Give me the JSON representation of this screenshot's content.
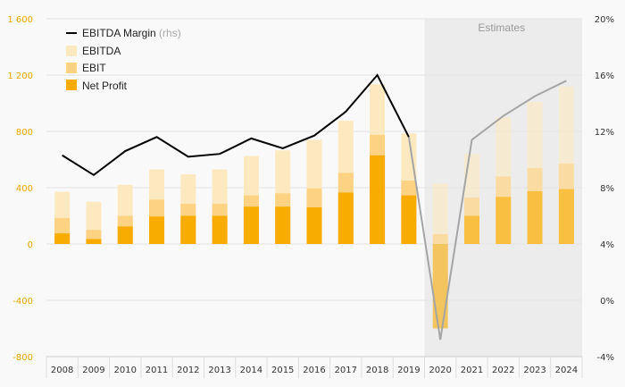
{
  "chart_data": {
    "type": "bar",
    "subtype": "stacked-overlay bar with line on secondary axis",
    "categories": [
      "2008",
      "2009",
      "2010",
      "2011",
      "2012",
      "2013",
      "2014",
      "2015",
      "2016",
      "2017",
      "2018",
      "2019",
      "2020",
      "2021",
      "2022",
      "2023",
      "2024"
    ],
    "series": [
      {
        "name": "EBITDA",
        "values": [
          370,
          300,
          420,
          530,
          495,
          530,
          625,
          665,
          740,
          875,
          1135,
          785,
          430,
          640,
          900,
          1010,
          1120
        ]
      },
      {
        "name": "EBIT",
        "values": [
          185,
          100,
          200,
          315,
          285,
          285,
          345,
          360,
          395,
          505,
          775,
          450,
          70,
          330,
          480,
          540,
          570
        ]
      },
      {
        "name": "Net Profit",
        "values": [
          75,
          35,
          125,
          195,
          200,
          200,
          265,
          265,
          260,
          365,
          630,
          345,
          -600,
          200,
          335,
          375,
          390
        ]
      }
    ],
    "line_series": {
      "name": "EBITDA Margin",
      "axis": "right",
      "values": [
        10.3,
        8.9,
        10.6,
        11.6,
        10.2,
        10.4,
        11.5,
        10.8,
        11.7,
        13.4,
        16.0,
        11.6,
        -2.8,
        11.4,
        13.1,
        14.5,
        15.6
      ]
    },
    "estimates_from": "2020",
    "estimates_label": "Estimates",
    "yaxis_left": {
      "min": -800,
      "max": 1600,
      "ticks": [
        -800,
        -400,
        0,
        400,
        800,
        1200,
        1600
      ],
      "tick_labels": [
        "-800",
        "-400",
        "0",
        "400",
        "800",
        "1 200",
        "1 600"
      ]
    },
    "yaxis_right": {
      "min": -4,
      "max": 20,
      "ticks": [
        -4,
        0,
        4,
        8,
        12,
        16,
        20
      ],
      "tick_labels": [
        "-4%",
        "0%",
        "4%",
        "8%",
        "12%",
        "16%",
        "20%"
      ]
    },
    "legend": {
      "placement": "top-left",
      "items": [
        {
          "label": "EBITDA Margin",
          "suffix": "(rhs)",
          "kind": "line"
        },
        {
          "label": "EBITDA",
          "kind": "bar"
        },
        {
          "label": "EBIT",
          "kind": "bar"
        },
        {
          "label": "Net Profit",
          "kind": "bar"
        }
      ]
    },
    "colors": {
      "ebitda": "#fde9c0",
      "ebit": "#fdd283",
      "net_profit": "#f8ab00",
      "line_actual": "#000000",
      "line_estimate": "#a5a5a5",
      "left_axis_text": "#e8a600",
      "right_axis_text": "#333333",
      "x_axis_text": "#333333",
      "grid": "#e3e3e3",
      "estimate_shade": "#ececec"
    }
  }
}
